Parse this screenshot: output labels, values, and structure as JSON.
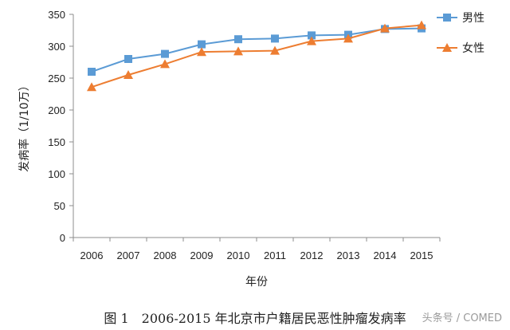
{
  "chart_data": {
    "type": "line",
    "categories": [
      "2006",
      "2007",
      "2008",
      "2009",
      "2010",
      "2011",
      "2012",
      "2013",
      "2014",
      "2015"
    ],
    "series": [
      {
        "name": "男性",
        "color": "#5b9bd5",
        "marker": "square",
        "values": [
          260,
          280,
          288,
          303,
          311,
          312,
          317,
          318,
          327,
          328
        ]
      },
      {
        "name": "女性",
        "color": "#ed7d31",
        "marker": "triangle",
        "values": [
          236,
          255,
          272,
          291,
          292,
          293,
          308,
          312,
          328,
          333
        ]
      }
    ],
    "title": "",
    "xlabel": "年份",
    "ylabel": "发病率（1/10万）",
    "ylim": [
      0,
      350
    ],
    "yticks": [
      0,
      50,
      100,
      150,
      200,
      250,
      300,
      350
    ],
    "grid": false,
    "legend": "top-right"
  },
  "caption": "图 1　2006-2015 年北京市户籍居民恶性肿瘤发病率",
  "watermark": "头条号 / COMED"
}
